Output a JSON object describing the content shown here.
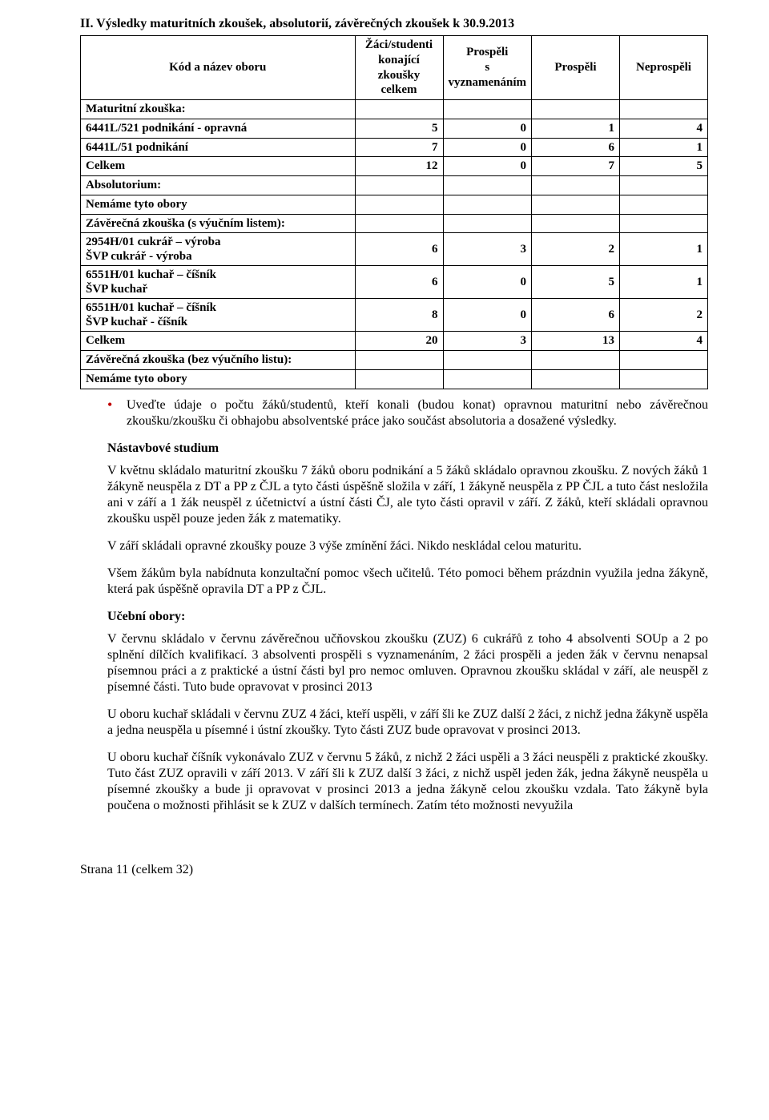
{
  "section_title": "II. Výsledky maturitních zkoušek, absolutorií, závěrečných zkoušek k 30.9.2013",
  "table": {
    "headers": {
      "c0": "Kód a název oboru",
      "c1_l1": "Žáci/studenti",
      "c1_l2": "konající zkoušky",
      "c1_l3": "celkem",
      "c2_l1": "Prospěli",
      "c2_l2": "s vyznamenáním",
      "c3": "Prospěli",
      "c4": "Neprospěli"
    },
    "rows": [
      {
        "label": "Maturitní zkouška:",
        "header_row": true
      },
      {
        "label": "6441L/521 podnikání - opravná",
        "v": [
          "5",
          "0",
          "1",
          "4"
        ]
      },
      {
        "label": "6441L/51 podnikání",
        "v": [
          "7",
          "0",
          "6",
          "1"
        ]
      },
      {
        "label": "Celkem",
        "v": [
          "12",
          "0",
          "7",
          "5"
        ]
      },
      {
        "label": "Absolutorium:",
        "header_row": true
      },
      {
        "label": "Nemáme tyto obory",
        "header_row": true
      },
      {
        "label": "Závěrečná zkouška (s výučním listem):",
        "header_row": true
      },
      {
        "label_l1": "2954H/01 cukrář – výroba",
        "label_l2": "ŠVP cukrář - výroba",
        "v": [
          "6",
          "3",
          "2",
          "1"
        ]
      },
      {
        "label_l1": "6551H/01 kuchař – číšník",
        "label_l2": "ŠVP kuchař",
        "v": [
          "6",
          "0",
          "5",
          "1"
        ]
      },
      {
        "label_l1": "6551H/01 kuchař – číšník",
        "label_l2": "ŠVP kuchař - číšník",
        "v": [
          "8",
          "0",
          "6",
          "2"
        ]
      },
      {
        "label": "Celkem",
        "v": [
          "20",
          "3",
          "13",
          "4"
        ]
      },
      {
        "label": "Závěrečná zkouška (bez výučního listu):",
        "header_row": true
      },
      {
        "label": "Nemáme tyto obory",
        "header_row": true
      }
    ]
  },
  "bullet": "Uveďte údaje o počtu žáků/studentů, kteří konali (budou konat) opravnou maturitní nebo závěrečnou zkoušku/zkoušku či obhajobu absolventské práce jako součást absolutoria a dosažené výsledky.",
  "paragraphs": [
    {
      "bold": true,
      "text": "Nástavbové studium"
    },
    {
      "text": "V květnu skládalo maturitní zkoušku  7 žáků oboru podnikání a 5 žáků skládalo opravnou zkoušku. Z nových žáků  1 žákyně neuspěla z DT a PP z ČJL a tyto části úspěšně složila v září, 1 žákyně neuspěla z PP ČJL a tuto část nesložila ani v září a 1 žák neuspěl z účetnictví a ústní části ČJ, ale tyto části opravil v září. Z žáků, kteří skládali opravnou zkoušku uspěl pouze jeden žák z matematiky."
    },
    {
      "text": "V září skládali opravné zkoušky pouze 3 výše zmínění žáci. Nikdo neskládal celou maturitu."
    },
    {
      "text": "Všem žákům byla nabídnuta konzultační pomoc všech učitelů. Této pomoci během prázdnin využila jedna žákyně, která pak úspěšně opravila DT a PP z ČJL."
    },
    {
      "bold": true,
      "text": "Učební obory:"
    },
    {
      "text": "V červnu skládalo v červnu závěrečnou učňovskou zkoušku (ZUZ) 6 cukrářů z toho 4 absolventi SOUp a 2 po splnění dílčích kvalifikací.  3 absolventi  prospěli s vyznamenáním, 2 žáci prospěli a jeden žák v červnu nenapsal písemnou práci a z praktické a ústní části byl pro nemoc omluven. Opravnou zkoušku skládal v září, ale neuspěl z písemné části. Tuto bude opravovat v prosinci 2013"
    },
    {
      "text": "U oboru kuchař  skládali v červnu ZUZ 4 žáci, kteří uspěli, v září šli ke ZUZ další 2 žáci, z nichž jedna žákyně uspěla a jedna neuspěla u písemné i ústní zkoušky. Tyto části ZUZ bude opravovat v prosinci 2013."
    },
    {
      "text": "U oboru kuchař  číšník vykonávalo ZUZ v červnu 5 žáků, z nichž 2 žáci uspěli a 3 žáci neuspěli z praktické zkoušky. Tuto část ZUZ opravili v září 2013.  V září šli k ZUZ další 3 žáci, z nichž uspěl jeden žák, jedna žákyně  neuspěla u písemné zkoušky a bude ji opravovat v prosinci 2013 a jedna žákyně celou zkoušku vzdala. Tato žákyně byla poučena o možnosti přihlásit se k ZUZ v dalších termínech. Zatím této možnosti nevyužila"
    }
  ],
  "footer": "Strana 11 (celkem 32)"
}
